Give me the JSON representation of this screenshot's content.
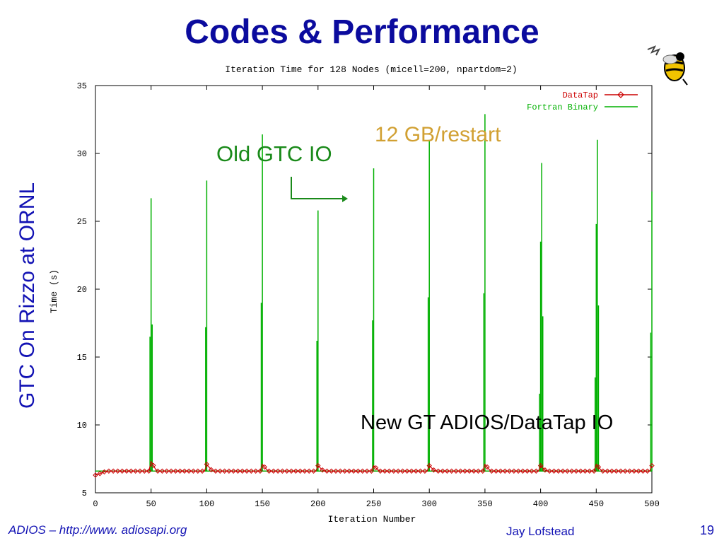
{
  "slide": {
    "title": "Codes & Performance",
    "side_label": "GTC On Rizzo at ORNL",
    "footer_left": "ADIOS – http://www. adiosapi.org",
    "footer_center": "Jay Lofstead",
    "page_number": "19",
    "annotations": {
      "old_io": "Old GTC IO",
      "restart": "12 GB/restart",
      "new_io": "New GT  ADIOS/DataTap IO"
    },
    "colors": {
      "title": "#0b0b9e",
      "text": "#1212b4",
      "old_io": "#1a8a1a",
      "restart": "#d1a032"
    },
    "icons": [
      "bee-mascot-icon",
      "right-arrow-icon"
    ]
  },
  "chart_data": {
    "type": "line",
    "title": "Iteration Time for 128 Nodes (micell=200, npartdom=2)",
    "xlabel": "Iteration Number",
    "ylabel": "Time (s)",
    "xlim": [
      0,
      500
    ],
    "ylim": [
      5,
      35
    ],
    "xticks": [
      "0",
      "50",
      "100",
      "150",
      "200",
      "250",
      "300",
      "350",
      "400",
      "450",
      "500"
    ],
    "yticks": [
      "5",
      "10",
      "15",
      "20",
      "25",
      "30",
      "35"
    ],
    "grid": false,
    "legend_position": "top-right",
    "series": [
      {
        "name": "DataTap",
        "color": "#cc0000",
        "marker": "diamond",
        "baseline": 6.6,
        "start_value": 6.3,
        "bumps": [
          {
            "x": 50,
            "y": 7.3
          },
          {
            "x": 100,
            "y": 7.1
          },
          {
            "x": 150,
            "y": 7.1
          },
          {
            "x": 200,
            "y": 7.0
          },
          {
            "x": 250,
            "y": 7.0
          },
          {
            "x": 300,
            "y": 7.0
          },
          {
            "x": 350,
            "y": 7.1
          },
          {
            "x": 400,
            "y": 7.0
          },
          {
            "x": 450,
            "y": 7.1
          },
          {
            "x": 500,
            "y": 7.0
          }
        ]
      },
      {
        "name": "Fortran Binary",
        "color": "#00b000",
        "baseline": 6.6,
        "spikes": [
          {
            "x": 49,
            "y": 16.5
          },
          {
            "x": 50,
            "y": 26.7
          },
          {
            "x": 51,
            "y": 17.4
          },
          {
            "x": 99,
            "y": 17.2
          },
          {
            "x": 100,
            "y": 28.0
          },
          {
            "x": 149,
            "y": 19.0
          },
          {
            "x": 150,
            "y": 31.4
          },
          {
            "x": 199,
            "y": 16.2
          },
          {
            "x": 200,
            "y": 25.8
          },
          {
            "x": 249,
            "y": 17.7
          },
          {
            "x": 250,
            "y": 28.9
          },
          {
            "x": 299,
            "y": 19.4
          },
          {
            "x": 300,
            "y": 31.0
          },
          {
            "x": 349,
            "y": 19.7
          },
          {
            "x": 350,
            "y": 32.9
          },
          {
            "x": 399,
            "y": 12.3
          },
          {
            "x": 400,
            "y": 23.5
          },
          {
            "x": 401,
            "y": 29.3
          },
          {
            "x": 402,
            "y": 18.0
          },
          {
            "x": 449,
            "y": 13.5
          },
          {
            "x": 450,
            "y": 24.8
          },
          {
            "x": 451,
            "y": 31.0
          },
          {
            "x": 452,
            "y": 18.8
          },
          {
            "x": 499,
            "y": 16.8
          },
          {
            "x": 500,
            "y": 27.2
          }
        ]
      }
    ]
  }
}
